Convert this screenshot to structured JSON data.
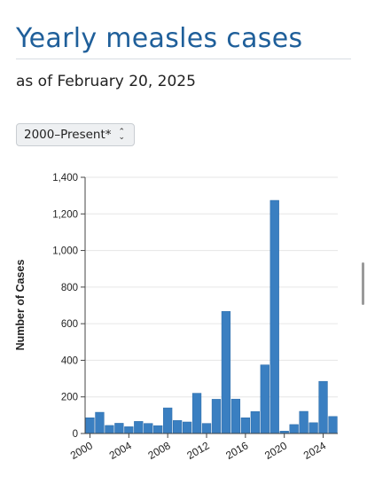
{
  "page": {
    "title": "Yearly measles cases",
    "subtitle": "as of February 20, 2025",
    "range_selector": "2000–Present*"
  },
  "icons": {
    "range_selector": "up-down-chevron-icon"
  },
  "colors": {
    "title": "#1f5f9a",
    "bar": "#3a7fc1",
    "bar_stroke": "#2a6aa8"
  },
  "chart_data": {
    "type": "bar",
    "title": "",
    "xlabel": "",
    "ylabel": "Number of Cases",
    "ylim": [
      0,
      1400
    ],
    "yticks": [
      0,
      200,
      400,
      600,
      800,
      1000,
      1200,
      1400
    ],
    "ytick_labels": [
      "0",
      "200",
      "400",
      "600",
      "800",
      "1,000",
      "1,200",
      "1,400"
    ],
    "xtick_labels": [
      "2000",
      "2004",
      "2008",
      "2012",
      "2016",
      "2020",
      "2024"
    ],
    "categories": [
      "2000",
      "2001",
      "2002",
      "2003",
      "2004",
      "2005",
      "2006",
      "2007",
      "2008",
      "2009",
      "2010",
      "2011",
      "2012",
      "2013",
      "2014",
      "2015",
      "2016",
      "2017",
      "2018",
      "2019",
      "2020",
      "2021",
      "2022",
      "2023",
      "2024",
      "2025"
    ],
    "values": [
      86,
      116,
      44,
      56,
      37,
      66,
      55,
      43,
      140,
      71,
      63,
      220,
      55,
      187,
      667,
      188,
      86,
      120,
      375,
      1274,
      13,
      49,
      121,
      59,
      285,
      93
    ],
    "grid": true
  }
}
